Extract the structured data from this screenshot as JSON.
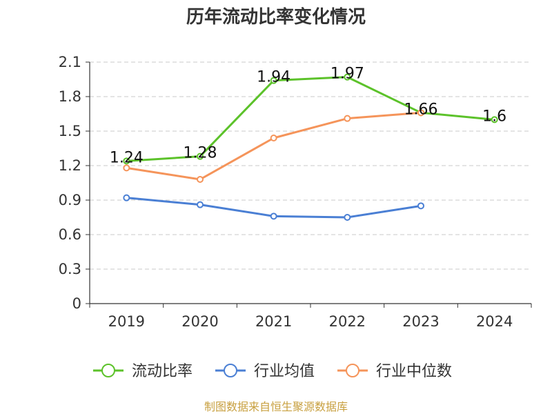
{
  "chart_data": {
    "type": "line",
    "title": "历年流动比率变化情况",
    "categories": [
      "2019",
      "2020",
      "2021",
      "2022",
      "2023",
      "2024"
    ],
    "yticks": [
      "0",
      "0.3",
      "0.6",
      "0.9",
      "1.2",
      "1.5",
      "1.8",
      "2.1"
    ],
    "ylim": [
      0,
      2.1
    ],
    "grid": true,
    "legend_position": "bottom",
    "series": [
      {
        "name": "流动比率",
        "color": "#5cc22a",
        "values": [
          1.24,
          1.28,
          1.94,
          1.97,
          1.66,
          1.6
        ],
        "labels": [
          "1.24",
          "1.28",
          "1.94",
          "1.97",
          "1.66",
          "1.6"
        ]
      },
      {
        "name": "行业均值",
        "color": "#4a7fd4",
        "values": [
          0.92,
          0.86,
          0.76,
          0.75,
          0.85,
          null
        ]
      },
      {
        "name": "行业中位数",
        "color": "#f5945a",
        "values": [
          1.18,
          1.08,
          1.44,
          1.61,
          1.66,
          null
        ]
      }
    ],
    "source": "制图数据来自恒生聚源数据库"
  }
}
